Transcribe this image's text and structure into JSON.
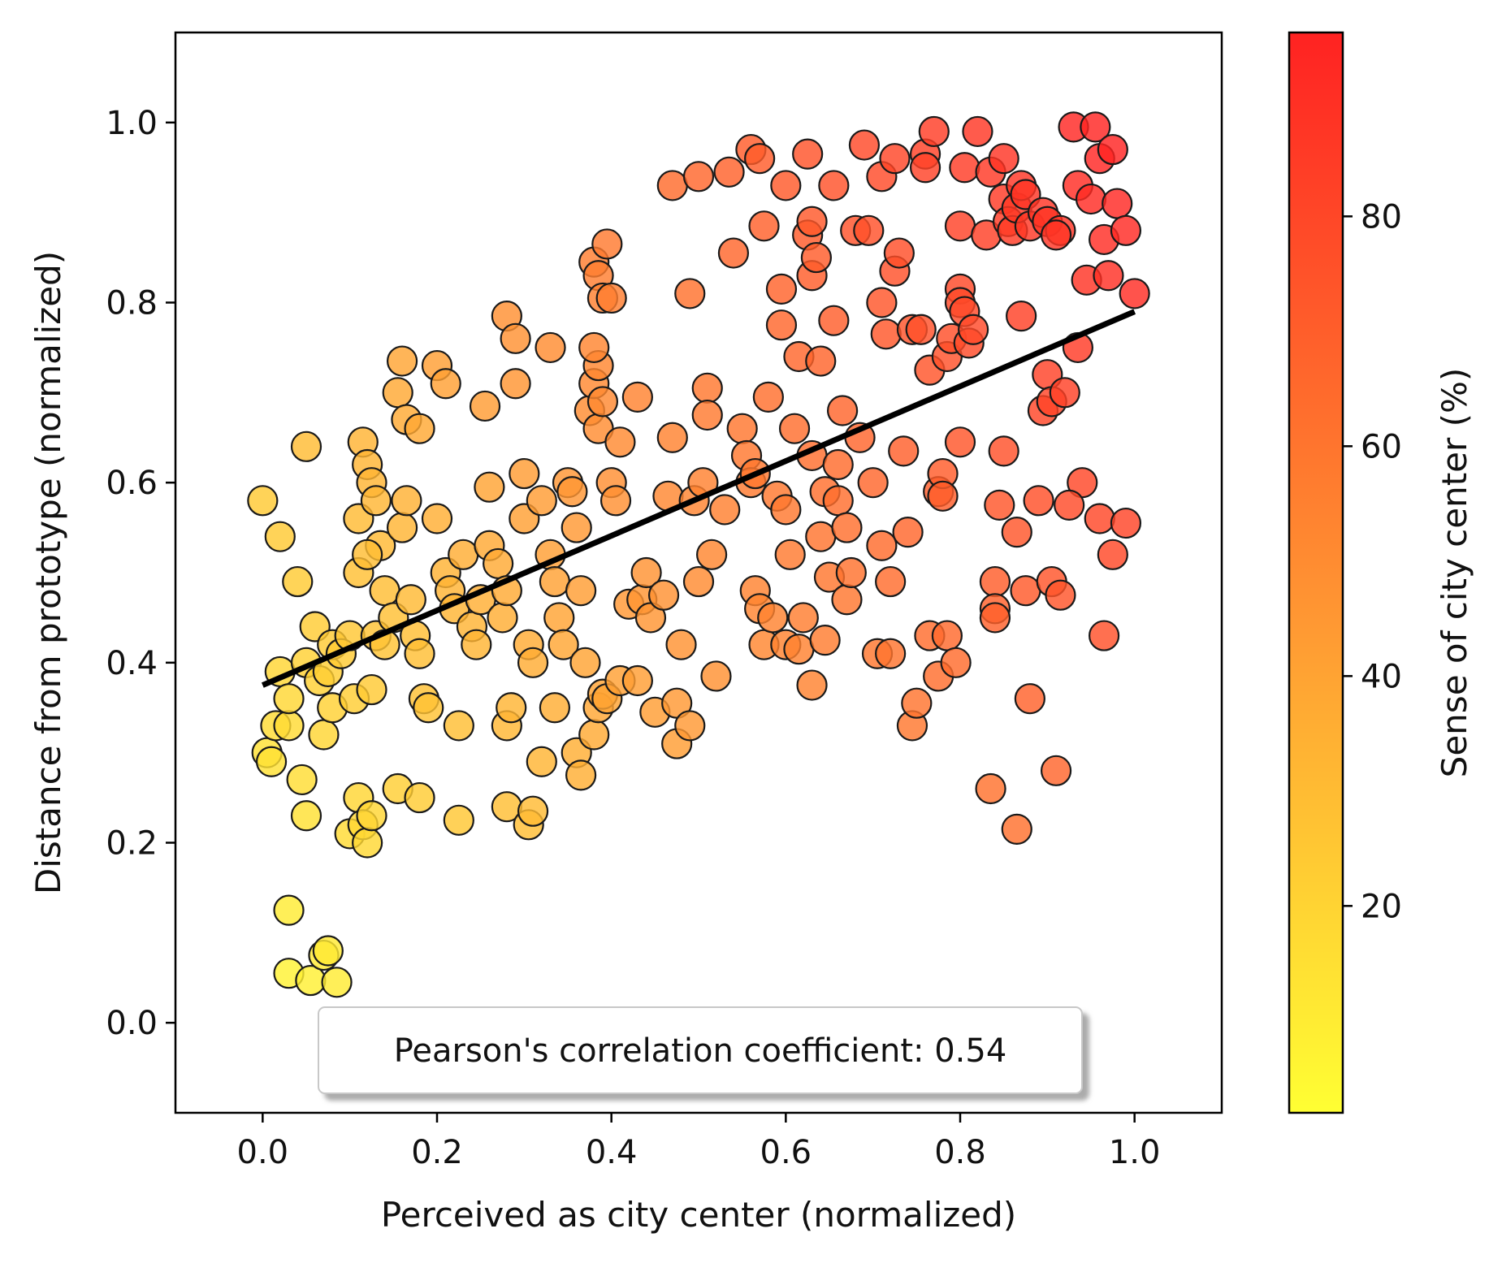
{
  "chart_data": {
    "type": "scatter",
    "title": "",
    "xlabel": "Perceived as city center (normalized)",
    "ylabel": "Distance from prototype (normalized)",
    "xlim": [
      -0.1,
      1.1
    ],
    "ylim": [
      -0.1,
      1.1
    ],
    "grid": false,
    "x_ticks": [
      0.0,
      0.2,
      0.4,
      0.6,
      0.8,
      1.0
    ],
    "x_tick_labels": [
      "0.0",
      "0.2",
      "0.4",
      "0.6",
      "0.8",
      "1.0"
    ],
    "y_ticks": [
      0.0,
      0.2,
      0.4,
      0.6,
      0.8,
      1.0
    ],
    "y_tick_labels": [
      "0.0",
      "0.2",
      "0.4",
      "0.6",
      "0.8",
      "1.0"
    ],
    "colorbar": {
      "label": "Sense of city center (%)",
      "range": [
        2,
        96
      ],
      "ticks": [
        20,
        40,
        60,
        80
      ],
      "tick_labels": [
        "20",
        "40",
        "60",
        "80"
      ],
      "colormap_low": "#ffff33",
      "colormap_mid": "#ff9933",
      "colormap_high": "#ff2222"
    },
    "regression_line": {
      "x": [
        0.0,
        1.0
      ],
      "y": [
        0.375,
        0.79
      ],
      "color": "#000000"
    },
    "annotation": {
      "text": "Pearson's correlation coefficient: 0.54",
      "position": "bottom-center"
    },
    "points": [
      [
        0.0,
        0.58
      ],
      [
        0.02,
        0.54
      ],
      [
        0.005,
        0.3
      ],
      [
        0.01,
        0.29
      ],
      [
        0.015,
        0.33
      ],
      [
        0.02,
        0.39
      ],
      [
        0.03,
        0.33
      ],
      [
        0.03,
        0.36
      ],
      [
        0.04,
        0.49
      ],
      [
        0.05,
        0.64
      ],
      [
        0.045,
        0.27
      ],
      [
        0.05,
        0.23
      ],
      [
        0.03,
        0.125
      ],
      [
        0.03,
        0.055
      ],
      [
        0.055,
        0.047
      ],
      [
        0.07,
        0.075
      ],
      [
        0.075,
        0.08
      ],
      [
        0.085,
        0.045
      ],
      [
        0.05,
        0.4
      ],
      [
        0.06,
        0.44
      ],
      [
        0.065,
        0.38
      ],
      [
        0.07,
        0.32
      ],
      [
        0.075,
        0.39
      ],
      [
        0.08,
        0.42
      ],
      [
        0.08,
        0.35
      ],
      [
        0.09,
        0.41
      ],
      [
        0.1,
        0.43
      ],
      [
        0.105,
        0.36
      ],
      [
        0.1,
        0.21
      ],
      [
        0.11,
        0.25
      ],
      [
        0.115,
        0.22
      ],
      [
        0.12,
        0.2
      ],
      [
        0.125,
        0.23
      ],
      [
        0.11,
        0.56
      ],
      [
        0.11,
        0.5
      ],
      [
        0.115,
        0.645
      ],
      [
        0.12,
        0.62
      ],
      [
        0.125,
        0.6
      ],
      [
        0.13,
        0.58
      ],
      [
        0.135,
        0.53
      ],
      [
        0.14,
        0.48
      ],
      [
        0.12,
        0.52
      ],
      [
        0.125,
        0.37
      ],
      [
        0.13,
        0.43
      ],
      [
        0.14,
        0.42
      ],
      [
        0.15,
        0.45
      ],
      [
        0.155,
        0.7
      ],
      [
        0.16,
        0.735
      ],
      [
        0.165,
        0.67
      ],
      [
        0.155,
        0.26
      ],
      [
        0.16,
        0.55
      ],
      [
        0.165,
        0.58
      ],
      [
        0.17,
        0.47
      ],
      [
        0.175,
        0.43
      ],
      [
        0.18,
        0.41
      ],
      [
        0.185,
        0.36
      ],
      [
        0.19,
        0.35
      ],
      [
        0.18,
        0.66
      ],
      [
        0.18,
        0.25
      ],
      [
        0.2,
        0.73
      ],
      [
        0.21,
        0.71
      ],
      [
        0.2,
        0.56
      ],
      [
        0.21,
        0.5
      ],
      [
        0.215,
        0.48
      ],
      [
        0.22,
        0.46
      ],
      [
        0.225,
        0.33
      ],
      [
        0.225,
        0.225
      ],
      [
        0.23,
        0.52
      ],
      [
        0.24,
        0.44
      ],
      [
        0.245,
        0.42
      ],
      [
        0.25,
        0.47
      ],
      [
        0.255,
        0.685
      ],
      [
        0.26,
        0.595
      ],
      [
        0.26,
        0.53
      ],
      [
        0.27,
        0.51
      ],
      [
        0.275,
        0.45
      ],
      [
        0.28,
        0.48
      ],
      [
        0.28,
        0.33
      ],
      [
        0.285,
        0.35
      ],
      [
        0.28,
        0.24
      ],
      [
        0.29,
        0.71
      ],
      [
        0.28,
        0.785
      ],
      [
        0.29,
        0.76
      ],
      [
        0.3,
        0.61
      ],
      [
        0.3,
        0.56
      ],
      [
        0.305,
        0.42
      ],
      [
        0.31,
        0.4
      ],
      [
        0.305,
        0.22
      ],
      [
        0.31,
        0.235
      ],
      [
        0.32,
        0.58
      ],
      [
        0.33,
        0.75
      ],
      [
        0.33,
        0.52
      ],
      [
        0.335,
        0.49
      ],
      [
        0.34,
        0.45
      ],
      [
        0.345,
        0.42
      ],
      [
        0.32,
        0.29
      ],
      [
        0.335,
        0.35
      ],
      [
        0.35,
        0.6
      ],
      [
        0.355,
        0.59
      ],
      [
        0.36,
        0.55
      ],
      [
        0.365,
        0.48
      ],
      [
        0.36,
        0.3
      ],
      [
        0.365,
        0.275
      ],
      [
        0.37,
        0.4
      ],
      [
        0.375,
        0.68
      ],
      [
        0.38,
        0.71
      ],
      [
        0.385,
        0.73
      ],
      [
        0.38,
        0.75
      ],
      [
        0.385,
        0.66
      ],
      [
        0.39,
        0.69
      ],
      [
        0.38,
        0.32
      ],
      [
        0.385,
        0.35
      ],
      [
        0.39,
        0.365
      ],
      [
        0.395,
        0.36
      ],
      [
        0.38,
        0.845
      ],
      [
        0.385,
        0.83
      ],
      [
        0.39,
        0.805
      ],
      [
        0.395,
        0.865
      ],
      [
        0.4,
        0.805
      ],
      [
        0.4,
        0.6
      ],
      [
        0.405,
        0.58
      ],
      [
        0.41,
        0.645
      ],
      [
        0.41,
        0.38
      ],
      [
        0.42,
        0.465
      ],
      [
        0.43,
        0.38
      ],
      [
        0.435,
        0.47
      ],
      [
        0.44,
        0.5
      ],
      [
        0.445,
        0.45
      ],
      [
        0.43,
        0.695
      ],
      [
        0.45,
        0.345
      ],
      [
        0.46,
        0.475
      ],
      [
        0.465,
        0.585
      ],
      [
        0.47,
        0.65
      ],
      [
        0.47,
        0.93
      ],
      [
        0.475,
        0.355
      ],
      [
        0.475,
        0.31
      ],
      [
        0.48,
        0.42
      ],
      [
        0.49,
        0.81
      ],
      [
        0.49,
        0.33
      ],
      [
        0.495,
        0.58
      ],
      [
        0.5,
        0.94
      ],
      [
        0.5,
        0.49
      ],
      [
        0.505,
        0.6
      ],
      [
        0.51,
        0.705
      ],
      [
        0.51,
        0.675
      ],
      [
        0.515,
        0.52
      ],
      [
        0.52,
        0.385
      ],
      [
        0.53,
        0.57
      ],
      [
        0.535,
        0.945
      ],
      [
        0.54,
        0.855
      ],
      [
        0.55,
        0.66
      ],
      [
        0.555,
        0.63
      ],
      [
        0.56,
        0.97
      ],
      [
        0.56,
        0.6
      ],
      [
        0.565,
        0.61
      ],
      [
        0.565,
        0.48
      ],
      [
        0.57,
        0.46
      ],
      [
        0.575,
        0.42
      ],
      [
        0.57,
        0.96
      ],
      [
        0.575,
        0.885
      ],
      [
        0.58,
        0.695
      ],
      [
        0.585,
        0.45
      ],
      [
        0.59,
        0.585
      ],
      [
        0.595,
        0.815
      ],
      [
        0.595,
        0.775
      ],
      [
        0.6,
        0.93
      ],
      [
        0.6,
        0.57
      ],
      [
        0.605,
        0.52
      ],
      [
        0.6,
        0.42
      ],
      [
        0.61,
        0.66
      ],
      [
        0.615,
        0.74
      ],
      [
        0.615,
        0.415
      ],
      [
        0.62,
        0.45
      ],
      [
        0.625,
        0.965
      ],
      [
        0.625,
        0.875
      ],
      [
        0.63,
        0.89
      ],
      [
        0.63,
        0.83
      ],
      [
        0.635,
        0.85
      ],
      [
        0.63,
        0.63
      ],
      [
        0.64,
        0.735
      ],
      [
        0.64,
        0.54
      ],
      [
        0.645,
        0.59
      ],
      [
        0.63,
        0.375
      ],
      [
        0.645,
        0.425
      ],
      [
        0.65,
        0.495
      ],
      [
        0.655,
        0.93
      ],
      [
        0.655,
        0.78
      ],
      [
        0.66,
        0.62
      ],
      [
        0.66,
        0.58
      ],
      [
        0.665,
        0.68
      ],
      [
        0.67,
        0.55
      ],
      [
        0.67,
        0.47
      ],
      [
        0.675,
        0.5
      ],
      [
        0.68,
        0.88
      ],
      [
        0.685,
        0.65
      ],
      [
        0.69,
        0.975
      ],
      [
        0.695,
        0.88
      ],
      [
        0.7,
        0.6
      ],
      [
        0.705,
        0.41
      ],
      [
        0.71,
        0.94
      ],
      [
        0.71,
        0.53
      ],
      [
        0.71,
        0.8
      ],
      [
        0.715,
        0.765
      ],
      [
        0.72,
        0.49
      ],
      [
        0.72,
        0.41
      ],
      [
        0.725,
        0.96
      ],
      [
        0.725,
        0.835
      ],
      [
        0.73,
        0.855
      ],
      [
        0.735,
        0.635
      ],
      [
        0.74,
        0.545
      ],
      [
        0.745,
        0.77
      ],
      [
        0.745,
        0.33
      ],
      [
        0.75,
        0.355
      ],
      [
        0.755,
        0.77
      ],
      [
        0.76,
        0.965
      ],
      [
        0.76,
        0.95
      ],
      [
        0.765,
        0.725
      ],
      [
        0.765,
        0.43
      ],
      [
        0.77,
        0.99
      ],
      [
        0.775,
        0.385
      ],
      [
        0.775,
        0.59
      ],
      [
        0.78,
        0.61
      ],
      [
        0.78,
        0.585
      ],
      [
        0.785,
        0.74
      ],
      [
        0.785,
        0.43
      ],
      [
        0.79,
        0.76
      ],
      [
        0.795,
        0.4
      ],
      [
        0.8,
        0.885
      ],
      [
        0.8,
        0.815
      ],
      [
        0.8,
        0.8
      ],
      [
        0.805,
        0.79
      ],
      [
        0.8,
        0.645
      ],
      [
        0.805,
        0.95
      ],
      [
        0.81,
        0.755
      ],
      [
        0.815,
        0.77
      ],
      [
        0.82,
        0.99
      ],
      [
        0.83,
        0.875
      ],
      [
        0.835,
        0.945
      ],
      [
        0.84,
        0.49
      ],
      [
        0.84,
        0.46
      ],
      [
        0.84,
        0.45
      ],
      [
        0.835,
        0.26
      ],
      [
        0.845,
        0.575
      ],
      [
        0.85,
        0.635
      ],
      [
        0.85,
        0.96
      ],
      [
        0.85,
        0.915
      ],
      [
        0.855,
        0.89
      ],
      [
        0.86,
        0.88
      ],
      [
        0.865,
        0.905
      ],
      [
        0.865,
        0.545
      ],
      [
        0.87,
        0.93
      ],
      [
        0.87,
        0.785
      ],
      [
        0.875,
        0.92
      ],
      [
        0.875,
        0.48
      ],
      [
        0.88,
        0.885
      ],
      [
        0.88,
        0.36
      ],
      [
        0.865,
        0.215
      ],
      [
        0.89,
        0.58
      ],
      [
        0.895,
        0.9
      ],
      [
        0.895,
        0.68
      ],
      [
        0.9,
        0.89
      ],
      [
        0.9,
        0.72
      ],
      [
        0.905,
        0.69
      ],
      [
        0.905,
        0.49
      ],
      [
        0.91,
        0.28
      ],
      [
        0.915,
        0.88
      ],
      [
        0.92,
        0.7
      ],
      [
        0.93,
        0.995
      ],
      [
        0.935,
        0.93
      ],
      [
        0.935,
        0.75
      ],
      [
        0.94,
        0.6
      ],
      [
        0.945,
        0.825
      ],
      [
        0.95,
        0.915
      ],
      [
        0.955,
        0.995
      ],
      [
        0.96,
        0.96
      ],
      [
        0.96,
        0.56
      ],
      [
        0.965,
        0.43
      ],
      [
        0.965,
        0.87
      ],
      [
        0.97,
        0.83
      ],
      [
        0.975,
        0.97
      ],
      [
        0.975,
        0.52
      ],
      [
        0.98,
        0.91
      ],
      [
        0.99,
        0.88
      ],
      [
        0.99,
        0.555
      ],
      [
        1.0,
        0.81
      ],
      [
        0.925,
        0.575
      ],
      [
        0.915,
        0.475
      ],
      [
        0.91,
        0.875
      ]
    ]
  }
}
